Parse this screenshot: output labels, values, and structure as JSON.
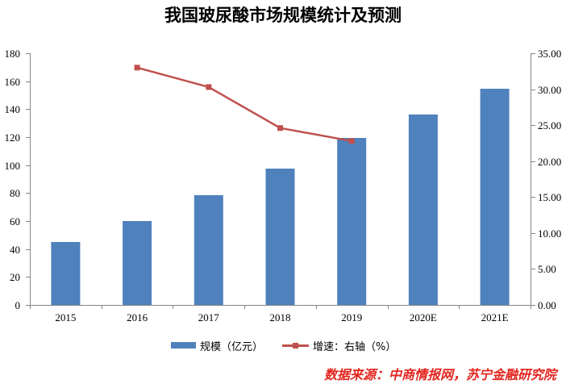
{
  "chart_data": {
    "type": "bar",
    "title": "我国玻尿酸市场规模统计及预测",
    "categories": [
      "2015",
      "2016",
      "2017",
      "2018",
      "2019",
      "2020E",
      "2021E"
    ],
    "series": [
      {
        "name": "规模（亿元）",
        "type": "bar",
        "axis": "left",
        "values": [
          45.0,
          60.0,
          78.5,
          97.5,
          119.4,
          136.2,
          154.6
        ]
      },
      {
        "name": "增速：右轴（%）",
        "type": "line",
        "axis": "right",
        "values": [
          null,
          33.0,
          30.3,
          24.6,
          22.8,
          null,
          null
        ]
      }
    ],
    "y_left": {
      "ylim": [
        0,
        180
      ],
      "ticks": [
        "0",
        "20",
        "40",
        "60",
        "80",
        "100",
        "120",
        "140",
        "160",
        "180"
      ]
    },
    "y_right": {
      "ylim": [
        0,
        35
      ],
      "ticks": [
        "0.00",
        "5.00",
        "10.00",
        "15.00",
        "20.00",
        "25.00",
        "30.00",
        "35.00"
      ]
    },
    "grid": false,
    "legend": "bottom"
  },
  "source": "数据来源：中商情报网，苏宁金融研究院",
  "colors": {
    "bar": "#4f81bd",
    "line": "#c0504d",
    "axis": "#868686",
    "source": "#e3261f",
    "text": "#000000"
  }
}
